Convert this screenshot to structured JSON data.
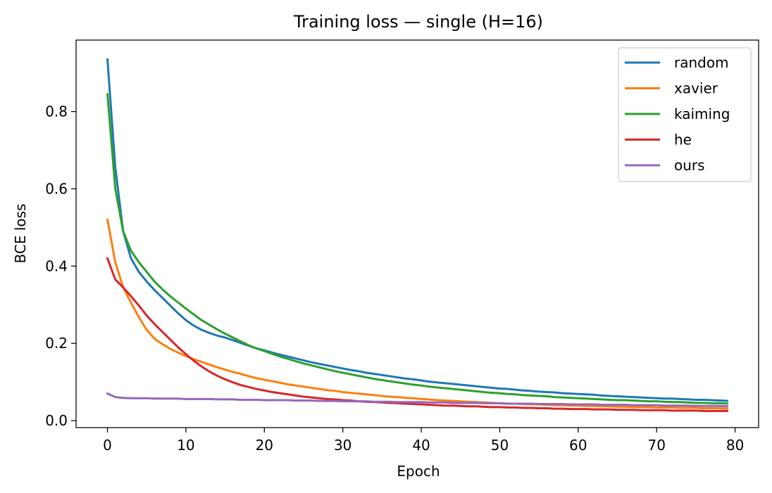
{
  "chart_data": {
    "type": "line",
    "title": "Training loss — single (H=16)",
    "xlabel": "Epoch",
    "ylabel": "BCE loss",
    "xlim": [
      -4,
      83
    ],
    "ylim": [
      -0.018,
      0.985
    ],
    "xticks": [
      0,
      10,
      20,
      30,
      40,
      50,
      60,
      70,
      80
    ],
    "yticks": [
      0.0,
      0.2,
      0.4,
      0.6,
      0.8
    ],
    "xtick_labels": [
      "0",
      "10",
      "20",
      "30",
      "40",
      "50",
      "60",
      "70",
      "80"
    ],
    "ytick_labels": [
      "0.0",
      "0.2",
      "0.4",
      "0.6",
      "0.8"
    ],
    "grid": false,
    "legend_position": "top-right",
    "x": [
      0,
      1,
      2,
      3,
      4,
      5,
      6,
      7,
      8,
      9,
      10,
      11,
      12,
      13,
      14,
      15,
      16,
      17,
      18,
      19,
      20,
      21,
      22,
      23,
      24,
      25,
      26,
      27,
      28,
      29,
      30,
      31,
      32,
      33,
      34,
      35,
      36,
      37,
      38,
      39,
      40,
      41,
      42,
      43,
      44,
      45,
      46,
      47,
      48,
      49,
      50,
      51,
      52,
      53,
      54,
      55,
      56,
      57,
      58,
      59,
      60,
      61,
      62,
      63,
      64,
      65,
      66,
      67,
      68,
      69,
      70,
      71,
      72,
      73,
      74,
      75,
      76,
      77,
      78,
      79
    ],
    "series": [
      {
        "name": "random",
        "color": "#1f77b4",
        "values": [
          0.935,
          0.655,
          0.49,
          0.42,
          0.385,
          0.36,
          0.338,
          0.318,
          0.298,
          0.278,
          0.26,
          0.246,
          0.235,
          0.227,
          0.22,
          0.215,
          0.208,
          0.201,
          0.194,
          0.187,
          0.182,
          0.176,
          0.171,
          0.166,
          0.161,
          0.156,
          0.151,
          0.147,
          0.143,
          0.139,
          0.135,
          0.131,
          0.128,
          0.124,
          0.121,
          0.118,
          0.115,
          0.112,
          0.109,
          0.107,
          0.104,
          0.101,
          0.099,
          0.097,
          0.095,
          0.093,
          0.091,
          0.089,
          0.087,
          0.085,
          0.083,
          0.082,
          0.08,
          0.078,
          0.077,
          0.075,
          0.074,
          0.073,
          0.071,
          0.07,
          0.069,
          0.068,
          0.067,
          0.065,
          0.064,
          0.063,
          0.062,
          0.061,
          0.06,
          0.059,
          0.058,
          0.057,
          0.057,
          0.056,
          0.055,
          0.054,
          0.054,
          0.053,
          0.052,
          0.051
        ]
      },
      {
        "name": "xavier",
        "color": "#ff7f0e",
        "values": [
          0.52,
          0.41,
          0.345,
          0.305,
          0.268,
          0.235,
          0.212,
          0.198,
          0.186,
          0.176,
          0.167,
          0.159,
          0.152,
          0.145,
          0.138,
          0.132,
          0.126,
          0.121,
          0.115,
          0.11,
          0.106,
          0.102,
          0.098,
          0.094,
          0.091,
          0.088,
          0.085,
          0.082,
          0.079,
          0.077,
          0.074,
          0.072,
          0.07,
          0.068,
          0.066,
          0.064,
          0.062,
          0.061,
          0.059,
          0.058,
          0.056,
          0.055,
          0.053,
          0.052,
          0.051,
          0.05,
          0.049,
          0.048,
          0.047,
          0.046,
          0.045,
          0.044,
          0.044,
          0.043,
          0.042,
          0.042,
          0.041,
          0.04,
          0.04,
          0.039,
          0.039,
          0.038,
          0.038,
          0.037,
          0.037,
          0.036,
          0.036,
          0.035,
          0.035,
          0.035,
          0.034,
          0.034,
          0.034,
          0.033,
          0.033,
          0.033,
          0.032,
          0.032,
          0.032,
          0.031
        ]
      },
      {
        "name": "kaiming",
        "color": "#2ca02c",
        "values": [
          0.845,
          0.6,
          0.49,
          0.44,
          0.41,
          0.385,
          0.36,
          0.34,
          0.322,
          0.306,
          0.29,
          0.275,
          0.26,
          0.248,
          0.236,
          0.225,
          0.215,
          0.205,
          0.195,
          0.187,
          0.18,
          0.173,
          0.166,
          0.16,
          0.154,
          0.148,
          0.143,
          0.138,
          0.133,
          0.128,
          0.124,
          0.12,
          0.116,
          0.112,
          0.108,
          0.105,
          0.102,
          0.099,
          0.096,
          0.093,
          0.091,
          0.088,
          0.086,
          0.084,
          0.082,
          0.08,
          0.078,
          0.076,
          0.074,
          0.072,
          0.071,
          0.069,
          0.068,
          0.066,
          0.065,
          0.064,
          0.063,
          0.061,
          0.06,
          0.059,
          0.058,
          0.057,
          0.056,
          0.055,
          0.054,
          0.053,
          0.053,
          0.052,
          0.051,
          0.05,
          0.05,
          0.049,
          0.048,
          0.048,
          0.047,
          0.046,
          0.046,
          0.045,
          0.045,
          0.044
        ]
      },
      {
        "name": "he",
        "color": "#d62728",
        "values": [
          0.42,
          0.365,
          0.345,
          0.322,
          0.298,
          0.272,
          0.25,
          0.23,
          0.21,
          0.19,
          0.172,
          0.155,
          0.14,
          0.127,
          0.116,
          0.107,
          0.099,
          0.092,
          0.087,
          0.082,
          0.078,
          0.074,
          0.071,
          0.068,
          0.065,
          0.062,
          0.06,
          0.058,
          0.056,
          0.055,
          0.053,
          0.052,
          0.05,
          0.049,
          0.048,
          0.047,
          0.046,
          0.045,
          0.044,
          0.043,
          0.042,
          0.041,
          0.04,
          0.039,
          0.039,
          0.038,
          0.037,
          0.037,
          0.036,
          0.035,
          0.035,
          0.034,
          0.034,
          0.033,
          0.033,
          0.032,
          0.032,
          0.031,
          0.031,
          0.03,
          0.03,
          0.03,
          0.029,
          0.029,
          0.029,
          0.028,
          0.028,
          0.028,
          0.027,
          0.027,
          0.027,
          0.027,
          0.026,
          0.026,
          0.026,
          0.026,
          0.025,
          0.025,
          0.025,
          0.025
        ]
      },
      {
        "name": "ours",
        "color": "#9467bd",
        "values": [
          0.07,
          0.061,
          0.059,
          0.058,
          0.058,
          0.058,
          0.057,
          0.057,
          0.057,
          0.057,
          0.056,
          0.056,
          0.056,
          0.056,
          0.055,
          0.055,
          0.055,
          0.054,
          0.054,
          0.054,
          0.053,
          0.053,
          0.053,
          0.053,
          0.052,
          0.052,
          0.052,
          0.051,
          0.051,
          0.051,
          0.05,
          0.05,
          0.05,
          0.05,
          0.049,
          0.049,
          0.049,
          0.048,
          0.048,
          0.048,
          0.048,
          0.047,
          0.047,
          0.047,
          0.046,
          0.046,
          0.046,
          0.046,
          0.045,
          0.045,
          0.045,
          0.044,
          0.044,
          0.044,
          0.044,
          0.043,
          0.043,
          0.043,
          0.043,
          0.042,
          0.042,
          0.042,
          0.042,
          0.041,
          0.041,
          0.041,
          0.041,
          0.04,
          0.04,
          0.04,
          0.04,
          0.039,
          0.039,
          0.039,
          0.039,
          0.038,
          0.038,
          0.038,
          0.038,
          0.037
        ]
      }
    ]
  }
}
